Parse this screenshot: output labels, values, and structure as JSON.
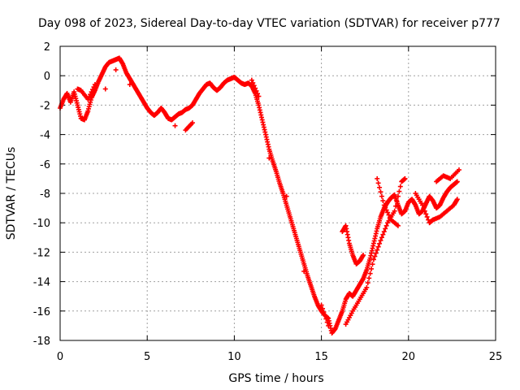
{
  "chart_data": {
    "type": "scatter",
    "title": "Day 098 of 2023, Sidereal Day-to-day VTEC variation (SDTVAR) for receiver p777",
    "xlabel": "GPS time / hours",
    "ylabel": "SDTVAR / TECUs",
    "xlim": [
      0,
      25
    ],
    "ylim": [
      -18,
      2
    ],
    "xticks": [
      0,
      5,
      10,
      15,
      20,
      25
    ],
    "yticks": [
      -18,
      -16,
      -14,
      -12,
      -10,
      -8,
      -6,
      -4,
      -2,
      0,
      2
    ],
    "grid": true,
    "marker": "+",
    "color": "#ff0000",
    "series": [
      {
        "name": "p777",
        "points": [
          [
            0.0,
            -2.2
          ],
          [
            0.2,
            -1.6
          ],
          [
            0.4,
            -1.2
          ],
          [
            0.6,
            -1.8
          ],
          [
            0.8,
            -1.1
          ],
          [
            1.0,
            -2.0
          ],
          [
            1.2,
            -2.9
          ],
          [
            1.4,
            -3.0
          ],
          [
            1.6,
            -2.4
          ],
          [
            1.8,
            -1.5
          ],
          [
            2.0,
            -1.0
          ],
          [
            2.2,
            -0.4
          ],
          [
            2.4,
            0.1
          ],
          [
            2.6,
            0.6
          ],
          [
            2.8,
            0.9
          ],
          [
            3.0,
            1.0
          ],
          [
            3.2,
            1.1
          ],
          [
            3.4,
            1.2
          ],
          [
            3.6,
            0.8
          ],
          [
            3.8,
            0.2
          ],
          [
            4.0,
            -0.2
          ],
          [
            4.2,
            -0.6
          ],
          [
            4.4,
            -1.0
          ],
          [
            4.6,
            -1.4
          ],
          [
            4.8,
            -1.8
          ],
          [
            5.0,
            -2.2
          ],
          [
            5.2,
            -2.5
          ],
          [
            5.4,
            -2.7
          ],
          [
            5.6,
            -2.5
          ],
          [
            5.8,
            -2.2
          ],
          [
            6.0,
            -2.5
          ],
          [
            6.2,
            -2.9
          ],
          [
            6.4,
            -3.0
          ],
          [
            6.6,
            -2.8
          ],
          [
            6.8,
            -2.6
          ],
          [
            7.0,
            -2.5
          ],
          [
            7.2,
            -2.3
          ],
          [
            7.4,
            -2.2
          ],
          [
            7.6,
            -2.0
          ],
          [
            7.8,
            -1.6
          ],
          [
            8.0,
            -1.2
          ],
          [
            8.2,
            -0.9
          ],
          [
            8.4,
            -0.6
          ],
          [
            8.6,
            -0.5
          ],
          [
            8.8,
            -0.8
          ],
          [
            9.0,
            -1.0
          ],
          [
            9.2,
            -0.8
          ],
          [
            9.4,
            -0.5
          ],
          [
            9.6,
            -0.3
          ],
          [
            9.8,
            -0.2
          ],
          [
            10.0,
            -0.1
          ],
          [
            10.2,
            -0.3
          ],
          [
            10.4,
            -0.5
          ],
          [
            10.6,
            -0.6
          ],
          [
            10.8,
            -0.5
          ],
          [
            11.0,
            -0.7
          ],
          [
            11.2,
            -1.2
          ],
          [
            11.4,
            -2.0
          ],
          [
            11.6,
            -3.0
          ],
          [
            11.8,
            -4.0
          ],
          [
            12.0,
            -5.0
          ],
          [
            12.2,
            -5.8
          ],
          [
            12.4,
            -6.5
          ],
          [
            12.6,
            -7.3
          ],
          [
            12.8,
            -8.0
          ],
          [
            13.0,
            -8.8
          ],
          [
            13.2,
            -9.6
          ],
          [
            13.4,
            -10.4
          ],
          [
            13.6,
            -11.2
          ],
          [
            13.8,
            -12.0
          ],
          [
            14.0,
            -12.8
          ],
          [
            14.2,
            -13.6
          ],
          [
            14.4,
            -14.3
          ],
          [
            14.6,
            -15.0
          ],
          [
            14.8,
            -15.6
          ],
          [
            15.0,
            -16.0
          ],
          [
            15.2,
            -16.3
          ],
          [
            15.4,
            -16.5
          ],
          [
            15.6,
            -17.5
          ],
          [
            15.8,
            -17.2
          ],
          [
            16.0,
            -16.6
          ],
          [
            16.2,
            -16.0
          ],
          [
            16.4,
            -15.2
          ],
          [
            16.6,
            -14.8
          ],
          [
            16.8,
            -15.0
          ],
          [
            17.0,
            -14.6
          ],
          [
            17.2,
            -14.2
          ],
          [
            17.4,
            -13.8
          ],
          [
            17.6,
            -13.2
          ],
          [
            17.8,
            -12.4
          ],
          [
            18.0,
            -11.4
          ],
          [
            18.2,
            -10.4
          ],
          [
            18.4,
            -9.6
          ],
          [
            18.6,
            -9.0
          ],
          [
            18.8,
            -8.6
          ],
          [
            19.0,
            -8.3
          ],
          [
            19.2,
            -8.1
          ],
          [
            19.4,
            -8.8
          ],
          [
            19.6,
            -9.4
          ],
          [
            19.8,
            -9.2
          ],
          [
            20.0,
            -8.6
          ],
          [
            20.2,
            -8.4
          ],
          [
            20.4,
            -8.8
          ],
          [
            20.6,
            -9.4
          ],
          [
            20.8,
            -9.2
          ],
          [
            21.0,
            -8.7
          ],
          [
            21.2,
            -8.2
          ],
          [
            21.4,
            -8.5
          ],
          [
            21.6,
            -9.0
          ],
          [
            21.8,
            -8.8
          ],
          [
            22.0,
            -8.3
          ],
          [
            22.2,
            -7.9
          ],
          [
            22.4,
            -7.6
          ],
          [
            22.6,
            -7.4
          ],
          [
            22.8,
            -7.2
          ],
          [
            1.0,
            -0.9
          ],
          [
            1.2,
            -1.0
          ],
          [
            1.6,
            -1.6
          ],
          [
            2.0,
            -0.6
          ],
          [
            2.6,
            -0.9
          ],
          [
            3.2,
            0.4
          ],
          [
            4.0,
            -0.6
          ],
          [
            6.6,
            -3.4
          ],
          [
            7.2,
            -3.7
          ],
          [
            7.6,
            -3.2
          ],
          [
            11.0,
            -0.3
          ],
          [
            11.4,
            -1.4
          ],
          [
            12.0,
            -5.6
          ],
          [
            13.0,
            -8.2
          ],
          [
            14.0,
            -13.3
          ],
          [
            15.0,
            -15.6
          ],
          [
            15.4,
            -17.0
          ],
          [
            16.2,
            -10.6
          ],
          [
            16.4,
            -10.2
          ],
          [
            16.6,
            -11.4
          ],
          [
            16.8,
            -12.2
          ],
          [
            17.0,
            -12.8
          ],
          [
            17.2,
            -12.6
          ],
          [
            17.4,
            -12.2
          ],
          [
            16.4,
            -16.9
          ],
          [
            16.8,
            -16.0
          ],
          [
            17.2,
            -15.2
          ],
          [
            17.6,
            -14.4
          ],
          [
            18.0,
            -12.5
          ],
          [
            18.4,
            -11.2
          ],
          [
            18.8,
            -10.0
          ],
          [
            19.2,
            -9.2
          ],
          [
            19.6,
            -7.2
          ],
          [
            19.8,
            -7.0
          ],
          [
            20.4,
            -8.0
          ],
          [
            20.8,
            -8.8
          ],
          [
            21.2,
            -10.0
          ],
          [
            21.4,
            -9.8
          ],
          [
            21.8,
            -9.6
          ],
          [
            22.2,
            -9.2
          ],
          [
            22.6,
            -8.8
          ],
          [
            22.8,
            -8.4
          ],
          [
            21.6,
            -7.2
          ],
          [
            22.0,
            -6.8
          ],
          [
            22.4,
            -7.0
          ],
          [
            22.9,
            -6.4
          ],
          [
            18.2,
            -7.0
          ],
          [
            18.6,
            -8.8
          ],
          [
            19.0,
            -9.8
          ],
          [
            19.4,
            -10.2
          ]
        ]
      }
    ]
  }
}
